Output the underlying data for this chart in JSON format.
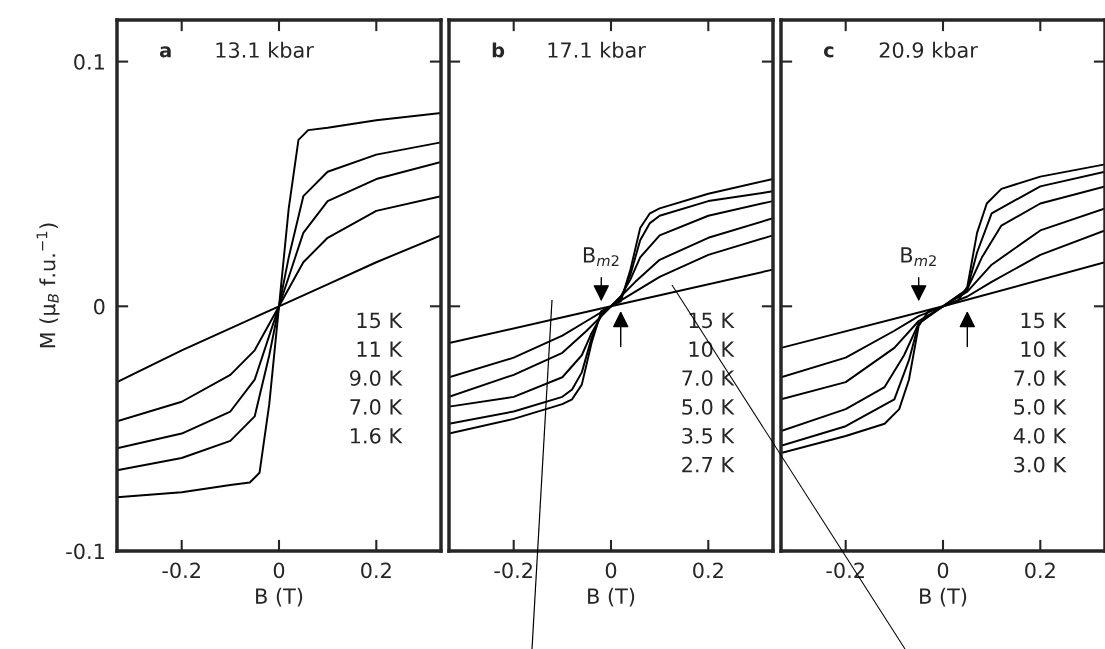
{
  "chart_data": [
    {
      "type": "line",
      "xlabel": "B (T)",
      "ylabel": "M (μ$_{B}$ f.u.$^{−1}$)",
      "xlim": [
        -0.333,
        0.333
      ],
      "ylim": [
        -0.1,
        0.117
      ],
      "xticks": [
        -0.2,
        0,
        0.2
      ],
      "yticks": [
        -0.1,
        0,
        0.1
      ],
      "grid": false,
      "legend": false,
      "annotations": [
        "a",
        "13.1 kbar",
        "15 K\n11 K\n9.0 K\n7.0 K\n1.6 K"
      ],
      "series": [
        {
          "color": "#000000",
          "x": [
            -0.333,
            -0.2,
            -0.1,
            0,
            0.1,
            0.2,
            0.333
          ],
          "values": [
            -0.031,
            -0.018,
            -0.009,
            0,
            0.009,
            0.018,
            0.029
          ]
        },
        {
          "color": "#000000",
          "x": [
            -0.333,
            -0.2,
            -0.1,
            -0.05,
            0,
            0.05,
            0.1,
            0.2,
            0.333
          ],
          "values": [
            -0.047,
            -0.039,
            -0.028,
            -0.018,
            0,
            0.018,
            0.028,
            0.039,
            0.045
          ]
        },
        {
          "color": "#000000",
          "x": [
            -0.333,
            -0.2,
            -0.1,
            -0.05,
            -0.02,
            0,
            0.02,
            0.05,
            0.1,
            0.2,
            0.333
          ],
          "values": [
            -0.058,
            -0.052,
            -0.043,
            -0.03,
            -0.012,
            0,
            0.012,
            0.03,
            0.043,
            0.052,
            0.059
          ]
        },
        {
          "color": "#000000",
          "x": [
            -0.333,
            -0.2,
            -0.1,
            -0.05,
            -0.02,
            0,
            0.02,
            0.05,
            0.1,
            0.2,
            0.333
          ],
          "values": [
            -0.067,
            -0.062,
            -0.055,
            -0.045,
            -0.02,
            0,
            0.02,
            0.045,
            0.055,
            0.062,
            0.067
          ]
        },
        {
          "color": "#000000",
          "x": [
            -0.333,
            -0.2,
            -0.1,
            -0.06,
            -0.04,
            -0.02,
            0,
            0.02,
            0.04,
            0.06,
            0.1,
            0.2,
            0.333
          ],
          "values": [
            -0.078,
            -0.076,
            -0.073,
            -0.072,
            -0.068,
            -0.04,
            0,
            0.04,
            0.068,
            0.072,
            0.073,
            0.076,
            0.079
          ]
        }
      ]
    },
    {
      "type": "line",
      "xlabel": "B (T)",
      "xlim": [
        -0.333,
        0.333
      ],
      "ylim": [
        -0.1,
        0.117
      ],
      "xticks": [
        -0.2,
        0,
        0.2
      ],
      "yticks": [
        -0.1,
        0,
        0.1
      ],
      "tick_labels": "x",
      "grid": false,
      "legend": false,
      "annotations": [
        "b",
        "17.1 kbar",
        "15 K\n10 K\n7.0 K\n5.0 K\n3.5 K\n2.7 K",
        "B$_{m2}$"
      ],
      "series": [
        {
          "color": "#000000",
          "x": [
            -0.333,
            0,
            0.333
          ],
          "values": [
            -0.015,
            0,
            0.015
          ]
        },
        {
          "color": "#000000",
          "x": [
            -0.333,
            -0.2,
            -0.1,
            -0.05,
            0,
            0.05,
            0.1,
            0.2,
            0.333
          ],
          "values": [
            -0.029,
            -0.021,
            -0.012,
            -0.006,
            0,
            0.006,
            0.012,
            0.021,
            0.029
          ]
        },
        {
          "color": "#000000",
          "x": [
            -0.333,
            -0.2,
            -0.1,
            -0.05,
            -0.02,
            0,
            0.02,
            0.05,
            0.1,
            0.2,
            0.333
          ],
          "values": [
            -0.037,
            -0.028,
            -0.019,
            -0.01,
            -0.004,
            0,
            0.004,
            0.01,
            0.019,
            0.028,
            0.036
          ]
        },
        {
          "color": "#000000",
          "x": [
            -0.333,
            -0.2,
            -0.1,
            -0.06,
            -0.04,
            -0.02,
            0,
            0.02,
            0.04,
            0.06,
            0.1,
            0.2,
            0.333
          ],
          "values": [
            -0.041,
            -0.037,
            -0.029,
            -0.02,
            -0.011,
            -0.004,
            0,
            0.004,
            0.011,
            0.02,
            0.029,
            0.037,
            0.043
          ]
        },
        {
          "color": "#000000",
          "x": [
            -0.333,
            -0.2,
            -0.1,
            -0.08,
            -0.06,
            -0.04,
            -0.02,
            0,
            0.02,
            0.04,
            0.06,
            0.08,
            0.1,
            0.2,
            0.333
          ],
          "values": [
            -0.048,
            -0.043,
            -0.037,
            -0.034,
            -0.027,
            -0.013,
            -0.003,
            0,
            0.003,
            0.013,
            0.027,
            0.034,
            0.037,
            0.043,
            0.047
          ]
        },
        {
          "color": "#000000",
          "x": [
            -0.333,
            -0.2,
            -0.1,
            -0.08,
            -0.06,
            -0.04,
            -0.02,
            0,
            0.02,
            0.04,
            0.06,
            0.08,
            0.1,
            0.2,
            0.333
          ],
          "values": [
            -0.052,
            -0.046,
            -0.04,
            -0.038,
            -0.032,
            -0.015,
            -0.002,
            0,
            0.002,
            0.015,
            0.032,
            0.038,
            0.04,
            0.046,
            0.052
          ]
        }
      ]
    },
    {
      "type": "line",
      "xlabel": "B (T)",
      "xlim": [
        -0.333,
        0.333
      ],
      "ylim": [
        -0.1,
        0.117
      ],
      "xticks": [
        -0.2,
        0,
        0.2
      ],
      "yticks": [
        -0.1,
        0,
        0.1
      ],
      "tick_labels": "x",
      "grid": false,
      "legend": false,
      "annotations": [
        "c",
        "20.9 kbar",
        "15 K\n10 K\n7.0 K\n5.0 K\n4.0 K\n3.0 K",
        "B$_{m2}$"
      ],
      "series": [
        {
          "color": "#000000",
          "x": [
            -0.333,
            0,
            0.333
          ],
          "values": [
            -0.017,
            0,
            0.018
          ]
        },
        {
          "color": "#000000",
          "x": [
            -0.333,
            -0.2,
            -0.1,
            -0.05,
            0,
            0.05,
            0.1,
            0.2,
            0.333
          ],
          "values": [
            -0.029,
            -0.021,
            -0.01,
            -0.004,
            0,
            0.004,
            0.01,
            0.021,
            0.031
          ]
        },
        {
          "color": "#000000",
          "x": [
            -0.333,
            -0.2,
            -0.1,
            -0.05,
            0,
            0.05,
            0.1,
            0.2,
            0.333
          ],
          "values": [
            -0.038,
            -0.031,
            -0.017,
            -0.006,
            0,
            0.006,
            0.017,
            0.031,
            0.04
          ]
        },
        {
          "color": "#000000",
          "x": [
            -0.333,
            -0.2,
            -0.12,
            -0.08,
            -0.05,
            0,
            0.05,
            0.08,
            0.12,
            0.2,
            0.333
          ],
          "values": [
            -0.051,
            -0.042,
            -0.033,
            -0.02,
            -0.007,
            0,
            0.007,
            0.02,
            0.033,
            0.042,
            0.049
          ]
        },
        {
          "color": "#000000",
          "x": [
            -0.333,
            -0.2,
            -0.1,
            -0.07,
            -0.05,
            0,
            0.05,
            0.07,
            0.1,
            0.2,
            0.333
          ],
          "values": [
            -0.057,
            -0.049,
            -0.038,
            -0.022,
            -0.007,
            0,
            0.007,
            0.022,
            0.038,
            0.049,
            0.055
          ]
        },
        {
          "color": "#000000",
          "x": [
            -0.333,
            -0.2,
            -0.12,
            -0.09,
            -0.07,
            -0.05,
            -0.03,
            0,
            0.03,
            0.05,
            0.07,
            0.09,
            0.12,
            0.2,
            0.333
          ],
          "values": [
            -0.06,
            -0.053,
            -0.048,
            -0.042,
            -0.03,
            -0.008,
            -0.002,
            0,
            0.002,
            0.008,
            0.03,
            0.042,
            0.048,
            0.053,
            0.058
          ]
        }
      ]
    }
  ]
}
